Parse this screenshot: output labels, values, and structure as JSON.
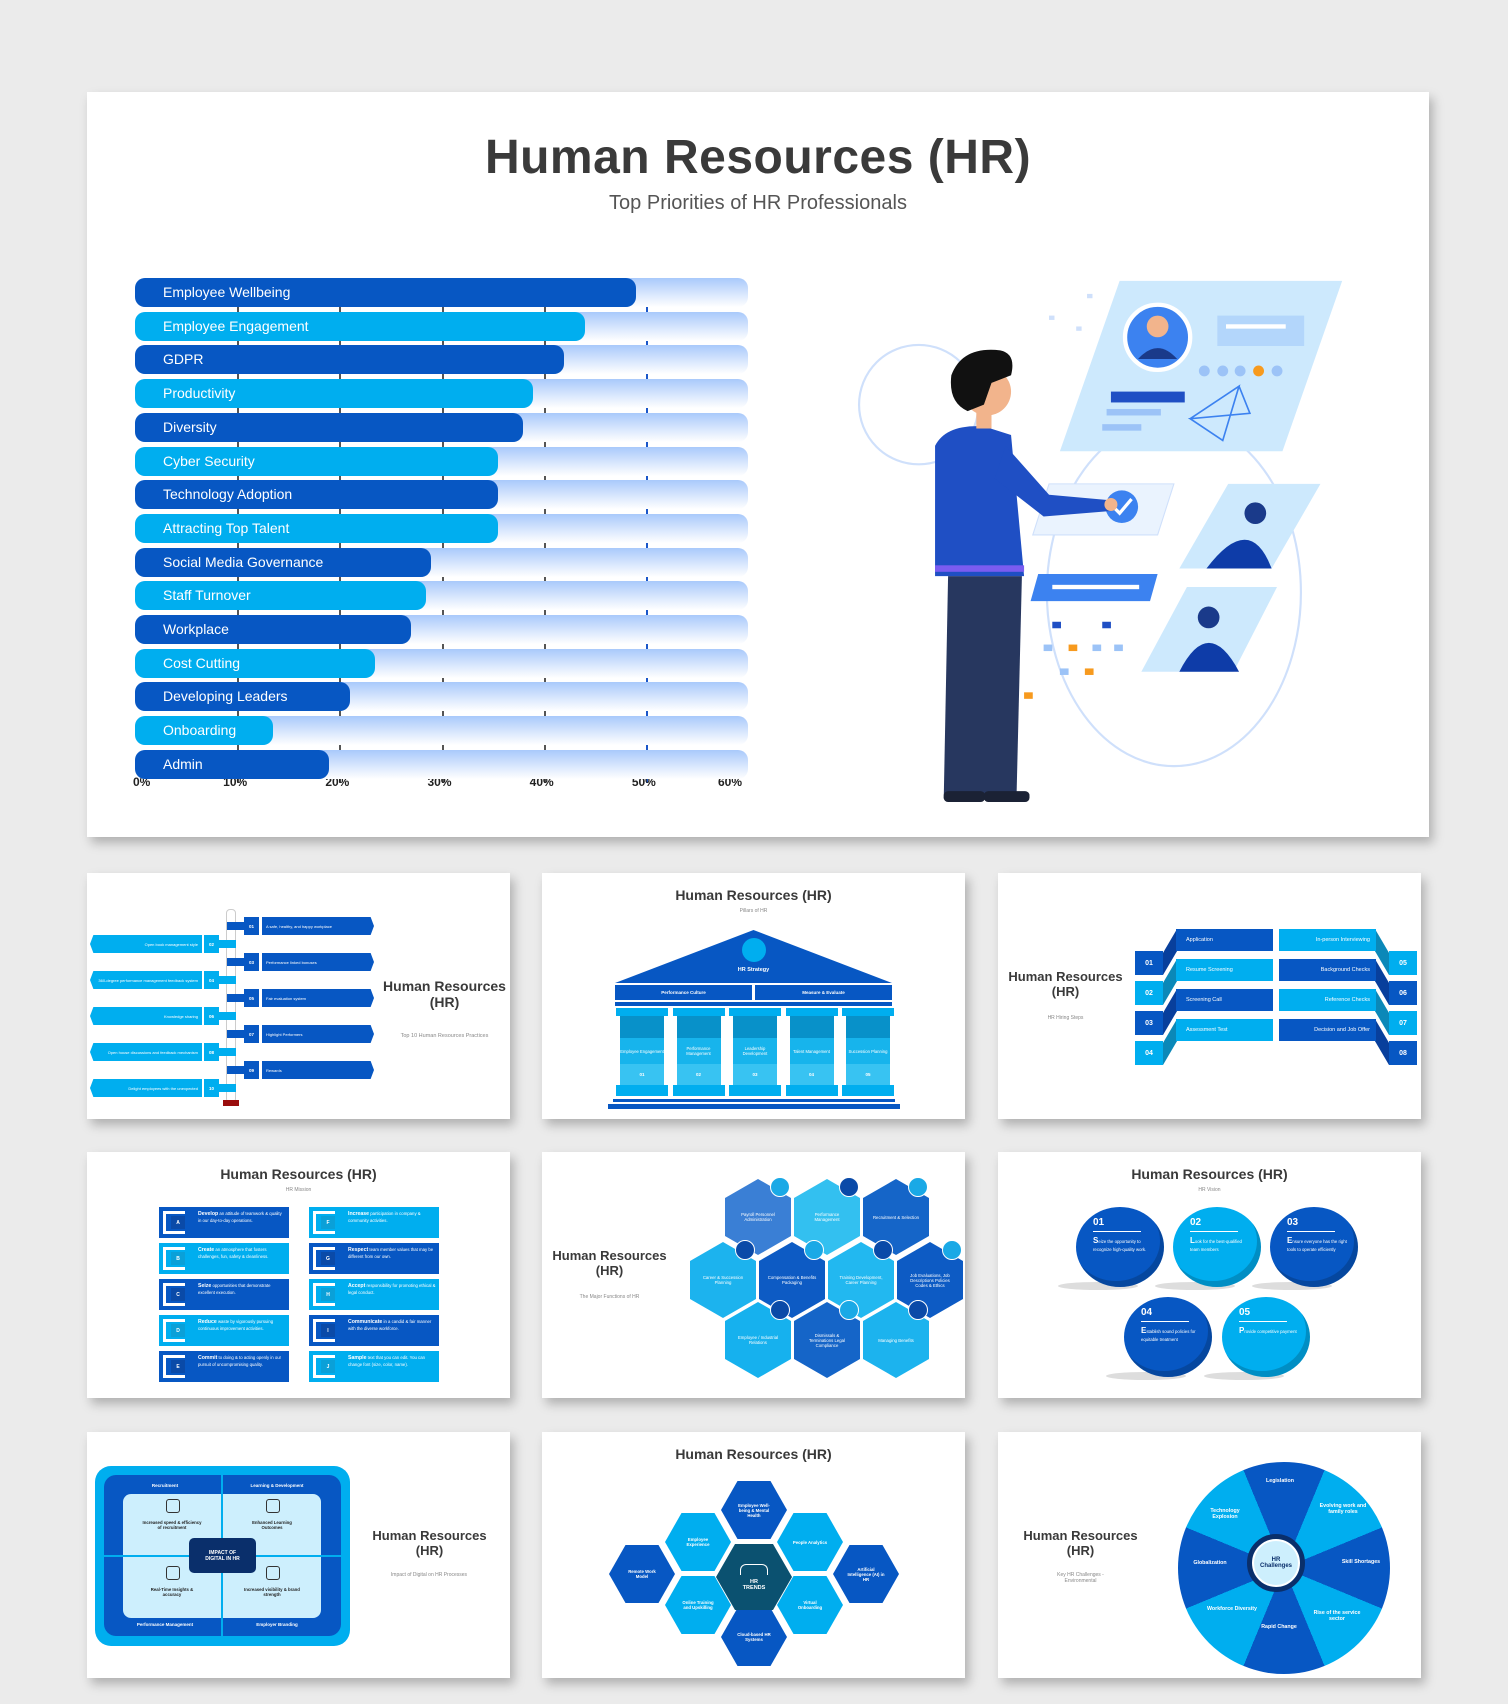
{
  "main": {
    "title": "Human Resources (HR)",
    "subtitle": "Top Priorities of HR Professionals",
    "chart_data": {
      "type": "bar",
      "orientation": "horizontal",
      "categories": [
        "Employee Wellbeing",
        "Employee Engagement",
        "GDPR",
        "Productivity",
        "Diversity",
        "Cyber Security",
        "Technology Adoption",
        "Attracting Top Talent",
        "Social Media Governance",
        "Staff Turnover",
        "Workplace",
        "Cost Cutting",
        "Developing Leaders",
        "Onboarding",
        "Admin"
      ],
      "values": [
        49,
        44,
        42,
        39,
        38,
        35.5,
        35.5,
        35.5,
        29,
        28.5,
        27,
        23.5,
        21,
        13.5,
        19
      ],
      "xticks": [
        "0%",
        "10%",
        "20%",
        "30%",
        "40%",
        "50%",
        "60%"
      ],
      "xlim": [
        0,
        60
      ],
      "title": "",
      "xlabel": "",
      "ylabel": "",
      "grid": true,
      "colors": {
        "dark": "#0757c3",
        "light": "#00aeef",
        "track": "#a9c9fb"
      }
    }
  },
  "thumbs": {
    "practices": {
      "title": "Human Resources (HR)",
      "subtitle": "Top 10 Human Resources Practices",
      "items": [
        {
          "num": "01",
          "text": "A safe, healthy, and happy workplace"
        },
        {
          "num": "02",
          "text": "Open book management style"
        },
        {
          "num": "03",
          "text": "Performance linked bonuses"
        },
        {
          "num": "04",
          "text": "360-degree performance management feedback system"
        },
        {
          "num": "05",
          "text": "Fair evaluation system"
        },
        {
          "num": "06",
          "text": "Knowledge sharing"
        },
        {
          "num": "07",
          "text": "Highlight Performers"
        },
        {
          "num": "08",
          "text": "Open house discussions and feedback mechanism"
        },
        {
          "num": "09",
          "text": "Rewards"
        },
        {
          "num": "10",
          "text": "Delight employees with the unexpected"
        }
      ]
    },
    "pillars": {
      "title": "Human Resources (HR)",
      "subtitle": "Pillars of HR",
      "roof": "HR Strategy",
      "beams": [
        "Performance Culture",
        "Measure & Evaluate"
      ],
      "pillars": [
        {
          "label": "Employee Engagement",
          "num": "01"
        },
        {
          "label": "Performance Management",
          "num": "02"
        },
        {
          "label": "Leadership Development",
          "num": "03"
        },
        {
          "label": "Talent Management",
          "num": "04"
        },
        {
          "label": "Succession Planning",
          "num": "05"
        }
      ]
    },
    "hiring": {
      "title": "Human Resources (HR)",
      "subtitle": "HR Hiring Steps",
      "steps": [
        {
          "num": "01",
          "label": "Application"
        },
        {
          "num": "02",
          "label": "Resume Screening"
        },
        {
          "num": "03",
          "label": "Screening Call"
        },
        {
          "num": "04",
          "label": "Assessment Test"
        },
        {
          "num": "05",
          "label": "In-person Interviewing"
        },
        {
          "num": "06",
          "label": "Background Checks"
        },
        {
          "num": "07",
          "label": "Reference Checks"
        },
        {
          "num": "08",
          "label": "Decision and Job Offer"
        }
      ]
    },
    "mission": {
      "title": "Human Resources (HR)",
      "subtitle": "HR Mission",
      "items": [
        {
          "letter": "A",
          "bold": "Develop",
          "text": " an attitude of teamwork & quality in our day-to-day operations."
        },
        {
          "letter": "B",
          "bold": "Create",
          "text": " an atmosphere that fosters challenges, fun, safety & cleanliness."
        },
        {
          "letter": "C",
          "bold": "Seize",
          "text": " opportunities that demonstrate excellent execution."
        },
        {
          "letter": "D",
          "bold": "Reduce",
          "text": " waste by vigorously pursuing continuous improvement activities."
        },
        {
          "letter": "E",
          "bold": "Commit",
          "text": " to doing & to acting openly in our pursuit of uncompromising quality."
        },
        {
          "letter": "F",
          "bold": "Increase",
          "text": " participation in company & community activities."
        },
        {
          "letter": "G",
          "bold": "Respect",
          "text": " team member values that may be different from our own."
        },
        {
          "letter": "H",
          "bold": "Accept",
          "text": " responsibility for promoting ethical & legal conduct."
        },
        {
          "letter": "I",
          "bold": "Communicate",
          "text": " in a candid & fair manner with the diverse workforce."
        },
        {
          "letter": "J",
          "bold": "Sample",
          "text": " text that you can edit. You can change font (size, color, name)."
        }
      ]
    },
    "functions": {
      "title": "Human Resources (HR)",
      "subtitle": "The Major Functions of HR",
      "items": [
        "Payroll Personnel Administration",
        "Performance Management",
        "Recruitment & Selection",
        "Career & Succession Planning",
        "Compensation & Benefits Packaging",
        "Training Development, Career Planning",
        "Job Evaluations, Job Descriptions Policies Codes & Ethics",
        "Employee / Industrial Relations",
        "Dismissals & Terminations Legal Compliance",
        "Managing Benefits"
      ]
    },
    "vision": {
      "title": "Human Resources (HR)",
      "subtitle": "HR Vision",
      "items": [
        {
          "num": "01",
          "initial": "S",
          "text": "eize the opportunity to recognize high-quality work."
        },
        {
          "num": "02",
          "initial": "L",
          "text": "ook for the best-qualified team members"
        },
        {
          "num": "03",
          "initial": "E",
          "text": "nsure everyone has the right tools to operate efficiently"
        },
        {
          "num": "04",
          "initial": "E",
          "text": "stablish sound policies for equitable treatment"
        },
        {
          "num": "05",
          "initial": "P",
          "text": "rovide competitive payment"
        }
      ]
    },
    "digital": {
      "title": "Human Resources (HR)",
      "subtitle": "Impact of Digital on HR Processes",
      "center": "IMPACT OF DIGITAL IN HR",
      "quadrants": [
        {
          "heading": "Recruitment",
          "text": "Increased speed & efficiency of recruitment"
        },
        {
          "heading": "Learning & Development",
          "text": "Enhanced Learning Outcomes"
        },
        {
          "heading": "Performance Management",
          "text": "Real-Time Insights & accuracy"
        },
        {
          "heading": "Employer Branding",
          "text": "Increased visibility & brand strength"
        }
      ]
    },
    "trends": {
      "title": "Human Resources (HR)",
      "center": "HR TRENDS",
      "items": [
        "Employee Well-being & Mental Health",
        "Employee Experience",
        "People Analytics",
        "Remote Work Model",
        "Artificial Intelligence (AI) in HR",
        "Online Training and Upskilling",
        "Virtual Onboarding",
        "Cloud-based HR Systems"
      ]
    },
    "challenges": {
      "title": "Human Resources (HR)",
      "subtitle": "Key HR Challenges - Environmental",
      "center": "HR Challenges",
      "items": [
        "Legislation",
        "Evolving work and family roles",
        "Skill Shortages",
        "Rise of the service sector",
        "Rapid Change",
        "Workforce Diversity",
        "Globalization",
        "Technology Explosion"
      ]
    }
  }
}
